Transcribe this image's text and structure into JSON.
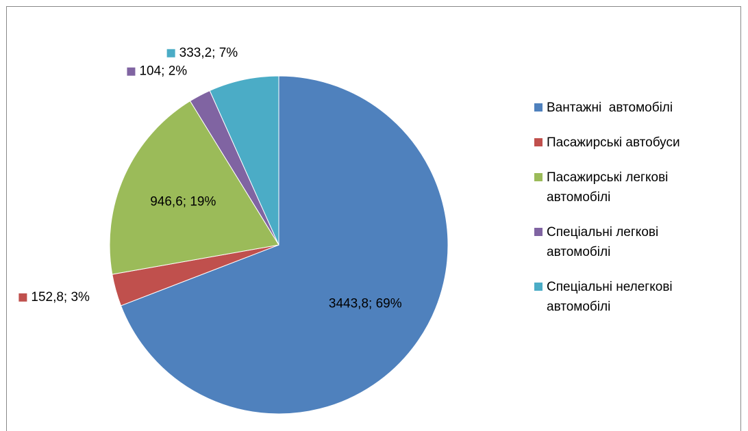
{
  "chart_data": {
    "type": "pie",
    "categories": [
      "Вантажні  автомобілі",
      "Пасажирські автобуси",
      "Пасажирські легкові автомобілі",
      "Спеціальні легкові автомобілі",
      "Спеціальні нелегкові автомобілі"
    ],
    "values": [
      3443.8,
      152.8,
      946.6,
      104,
      333.2
    ],
    "value_labels": [
      "3443,8; 69%",
      "152,8; 3%",
      "946,6; 19%",
      "104; 2%",
      "333,2; 7%"
    ],
    "colors": [
      "#4f81bd",
      "#c0504d",
      "#9bbb59",
      "#8064a2",
      "#4bacc6"
    ],
    "legend": "right"
  }
}
